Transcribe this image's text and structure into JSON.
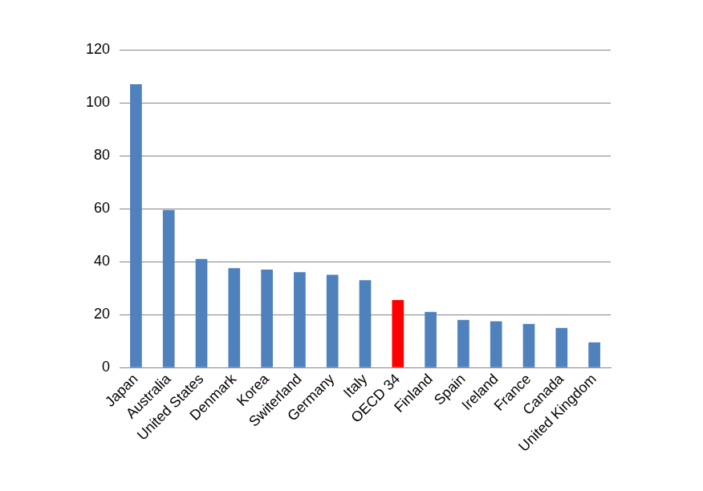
{
  "chart_data": {
    "type": "bar",
    "categories": [
      "Japan",
      "Australia",
      "United States",
      "Denmark",
      "Korea",
      "Switerland",
      "Germany",
      "Italy",
      "OECD 34",
      "Finland",
      "Spain",
      "Ireland",
      "France",
      "Canada",
      "United Kingdom"
    ],
    "values": [
      107,
      59.5,
      41,
      37.5,
      37,
      36,
      35,
      33,
      25.5,
      21,
      18,
      17.5,
      16.5,
      15,
      9.5
    ],
    "colors": [
      "#4f81bd",
      "#4f81bd",
      "#4f81bd",
      "#4f81bd",
      "#4f81bd",
      "#4f81bd",
      "#4f81bd",
      "#4f81bd",
      "#ff0000",
      "#4f81bd",
      "#4f81bd",
      "#4f81bd",
      "#4f81bd",
      "#4f81bd",
      "#4f81bd"
    ],
    "ylim": [
      0,
      120
    ],
    "yticks": [
      0,
      20,
      40,
      60,
      80,
      100,
      120
    ],
    "grid": true
  }
}
